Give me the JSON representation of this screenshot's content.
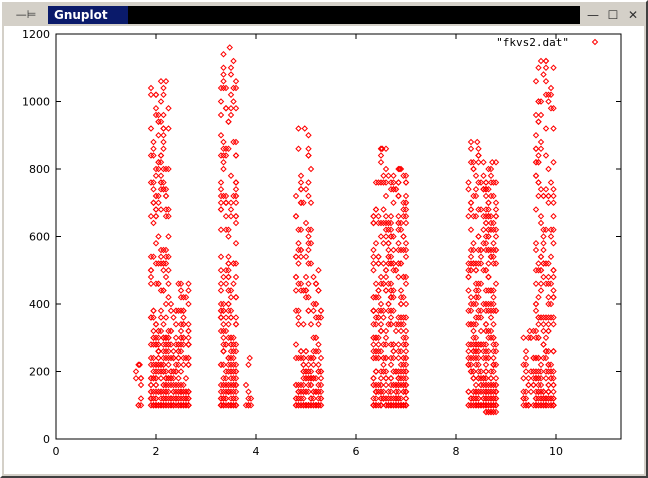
{
  "window": {
    "title": "Gnuplot",
    "menu_label": "—⊨",
    "minimize_glyph": "—",
    "maximize_glyph": "☐",
    "close_glyph": "✕"
  },
  "chart_data": {
    "type": "scatter",
    "xlim": [
      0,
      11.3
    ],
    "ylim": [
      0,
      1200
    ],
    "xticks": [
      0,
      2,
      4,
      6,
      8,
      10
    ],
    "yticks": [
      0,
      200,
      400,
      600,
      800,
      1000,
      1200
    ],
    "grid": false,
    "legend_position": "top-right",
    "marker_color": "#ff0000",
    "series": [
      {
        "name": "\"fkvs2.dat\"",
        "clusters": [
          {
            "x": [
              1.6,
              1.75
            ],
            "ymin": 100,
            "ymax": 220,
            "n": 10
          },
          {
            "x": [
              1.9,
              2.3
            ],
            "ymin": 100,
            "ymax": 1060,
            "n": 260
          },
          {
            "x": [
              2.3,
              2.7
            ],
            "ymin": 95,
            "ymax": 460,
            "n": 160
          },
          {
            "x": [
              3.3,
              3.65
            ],
            "ymin": 100,
            "ymax": 1160,
            "n": 230
          },
          {
            "x": [
              3.8,
              3.95
            ],
            "ymin": 100,
            "ymax": 240,
            "n": 10
          },
          {
            "x": [
              4.8,
              5.15
            ],
            "ymin": 100,
            "ymax": 920,
            "n": 150
          },
          {
            "x": [
              5.15,
              5.35
            ],
            "ymin": 95,
            "ymax": 500,
            "n": 70
          },
          {
            "x": [
              6.35,
              6.7
            ],
            "ymin": 100,
            "ymax": 860,
            "n": 180
          },
          {
            "x": [
              6.7,
              7.05
            ],
            "ymin": 90,
            "ymax": 800,
            "n": 230
          },
          {
            "x": [
              8.25,
              8.6
            ],
            "ymin": 100,
            "ymax": 880,
            "n": 200
          },
          {
            "x": [
              8.6,
              8.85
            ],
            "ymin": 85,
            "ymax": 820,
            "n": 200
          },
          {
            "x": [
              9.35,
              9.6
            ],
            "ymin": 100,
            "ymax": 320,
            "n": 40
          },
          {
            "x": [
              9.6,
              10.0
            ],
            "ymin": 95,
            "ymax": 1120,
            "n": 230
          }
        ]
      }
    ]
  }
}
